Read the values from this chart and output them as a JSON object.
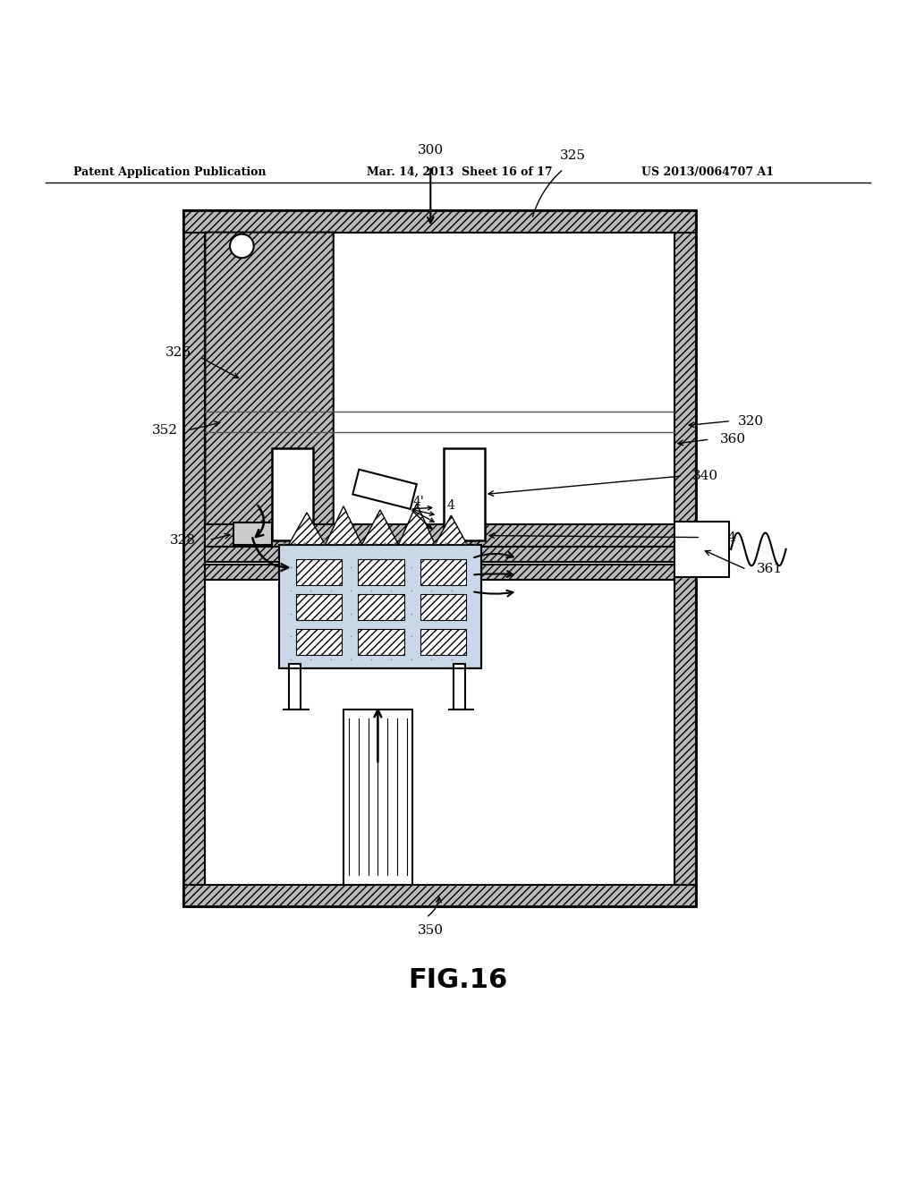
{
  "bg_color": "#ffffff",
  "header_left": "Patent Application Publication",
  "header_mid": "Mar. 14, 2013  Sheet 16 of 17",
  "header_right": "US 2013/0064707 A1",
  "fig_label": "FIG.16"
}
